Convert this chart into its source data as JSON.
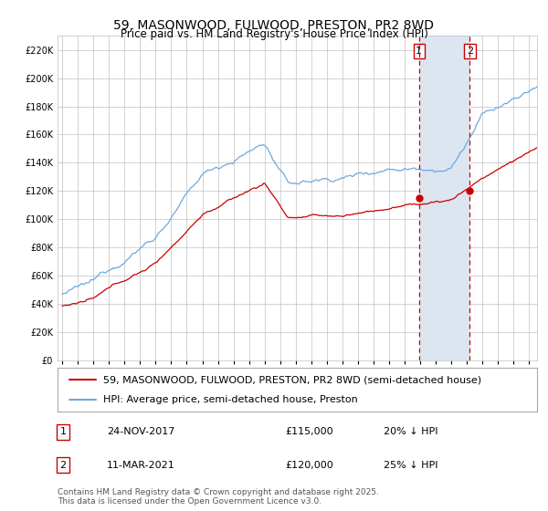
{
  "title": "59, MASONWOOD, FULWOOD, PRESTON, PR2 8WD",
  "subtitle": "Price paid vs. HM Land Registry's House Price Index (HPI)",
  "legend_line1": "59, MASONWOOD, FULWOOD, PRESTON, PR2 8WD (semi-detached house)",
  "legend_line2": "HPI: Average price, semi-detached house, Preston",
  "sale1_date": "24-NOV-2017",
  "sale1_price": "£115,000",
  "sale1_hpi": "20% ↓ HPI",
  "sale2_date": "11-MAR-2021",
  "sale2_price": "£120,000",
  "sale2_hpi": "25% ↓ HPI",
  "sale1_price_val": 115000,
  "sale2_price_val": 120000,
  "sale1_year": 2017.92,
  "sale2_year": 2021.17,
  "footer": "Contains HM Land Registry data © Crown copyright and database right 2025.\nThis data is licensed under the Open Government Licence v3.0.",
  "hpi_color": "#6fa8dc",
  "price_color": "#cc0000",
  "vline_color": "#cc0000",
  "shade_color": "#dce6f1",
  "grid_color": "#c0c0c0",
  "ylim": [
    0,
    230000
  ],
  "yticks": [
    0,
    20000,
    40000,
    60000,
    80000,
    100000,
    120000,
    140000,
    160000,
    180000,
    200000,
    220000
  ],
  "xlim_start": 1994.7,
  "xlim_end": 2025.5,
  "background_color": "#ffffff",
  "title_fontsize": 10,
  "subtitle_fontsize": 8.5,
  "tick_fontsize": 7,
  "legend_fontsize": 8,
  "table_fontsize": 8,
  "footer_fontsize": 6.5
}
